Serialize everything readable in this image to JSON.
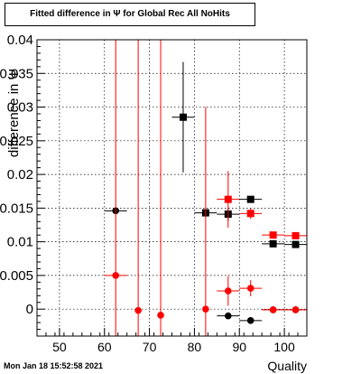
{
  "title": "Fitted difference in  Ψ  for Global Rec All NoHits",
  "timestamp": "Mon Jan 18 15:52:58 2021",
  "chart_data": {
    "type": "scatter",
    "title": "Fitted difference in  Ψ  for Global Rec All NoHits",
    "xlabel": "Quality",
    "ylabel": "difference in  Ψ",
    "xlim": [
      45,
      105
    ],
    "ylim": [
      -0.004,
      0.04
    ],
    "xticks": [
      50,
      60,
      70,
      80,
      90,
      100
    ],
    "yticks": [
      0,
      0.005,
      0.01,
      0.015,
      0.02,
      0.025,
      0.03,
      0.035,
      0.04
    ],
    "ytick_labels": [
      "0",
      "0.005",
      "0.01",
      "0.015",
      "0.02",
      "0.025",
      "0.03",
      "0.035",
      "0.04"
    ],
    "grid": true,
    "series": [
      {
        "color": "#000000",
        "points": [
          {
            "x": 62.5,
            "y": 0.0146,
            "xerr": 2.5,
            "yerr": 0.0002,
            "marker": "circle"
          },
          {
            "x": 77.5,
            "y": 0.0285,
            "xerr": 2.5,
            "yerr": 0.0082,
            "marker": "square"
          },
          {
            "x": 82.5,
            "y": 0.0143,
            "xerr": 2.5,
            "yerr": 0.0006,
            "marker": "square"
          },
          {
            "x": 87.5,
            "y": 0.0141,
            "xerr": 2.5,
            "yerr": 0.001,
            "marker": "square"
          },
          {
            "x": 87.5,
            "y": -0.001,
            "xerr": 2.5,
            "yerr": 0.0005,
            "marker": "circle"
          },
          {
            "x": 92.5,
            "y": 0.0163,
            "xerr": 2.5,
            "yerr": 0.0005,
            "marker": "square"
          },
          {
            "x": 92.5,
            "y": -0.0017,
            "xerr": 2.5,
            "yerr": 0.0002,
            "marker": "circle"
          },
          {
            "x": 97.5,
            "y": 0.0097,
            "xerr": 2.5,
            "yerr": 0.0002,
            "marker": "square"
          },
          {
            "x": 102.5,
            "y": 0.0096,
            "xerr": 2.5,
            "yerr": 0.0002,
            "marker": "square"
          },
          {
            "x": 97.5,
            "y": -0.0001,
            "xerr": 2.5,
            "yerr": 0.0001,
            "marker": "circle"
          },
          {
            "x": 102.5,
            "y": -0.0001,
            "xerr": 2.5,
            "yerr": 0.0001,
            "marker": "circle"
          }
        ]
      },
      {
        "color": "#ff0000",
        "points": [
          {
            "x": 62.5,
            "y": 0.005,
            "xerr": 2.5,
            "yerr": 0.05,
            "marker": "circle"
          },
          {
            "x": 67.5,
            "y": -0.0002,
            "xerr": 0.5,
            "yerr": 0.05,
            "marker": "circle"
          },
          {
            "x": 72.5,
            "y": -0.0009,
            "xerr": 0.5,
            "yerr": 0.05,
            "marker": "circle"
          },
          {
            "x": 82.5,
            "y": 0.0,
            "xerr": 0.5,
            "yerr": 0.03,
            "marker": "circle"
          },
          {
            "x": 87.5,
            "y": 0.0163,
            "xerr": 2.5,
            "yerr": 0.0042,
            "marker": "square"
          },
          {
            "x": 87.5,
            "y": 0.0027,
            "xerr": 2.5,
            "yerr": 0.0022,
            "marker": "circle"
          },
          {
            "x": 92.5,
            "y": 0.0142,
            "xerr": 2.5,
            "yerr": 0.0008,
            "marker": "square"
          },
          {
            "x": 92.5,
            "y": 0.0031,
            "xerr": 2.5,
            "yerr": 0.0012,
            "marker": "circle"
          },
          {
            "x": 97.5,
            "y": 0.011,
            "xerr": 2.5,
            "yerr": 0.0002,
            "marker": "square"
          },
          {
            "x": 102.5,
            "y": 0.0109,
            "xerr": 2.5,
            "yerr": 0.0002,
            "marker": "square"
          },
          {
            "x": 97.5,
            "y": -0.0001,
            "xerr": 2.5,
            "yerr": 0.0001,
            "marker": "circle"
          },
          {
            "x": 102.5,
            "y": -0.0001,
            "xerr": 2.5,
            "yerr": 0.0001,
            "marker": "circle"
          }
        ]
      }
    ]
  }
}
